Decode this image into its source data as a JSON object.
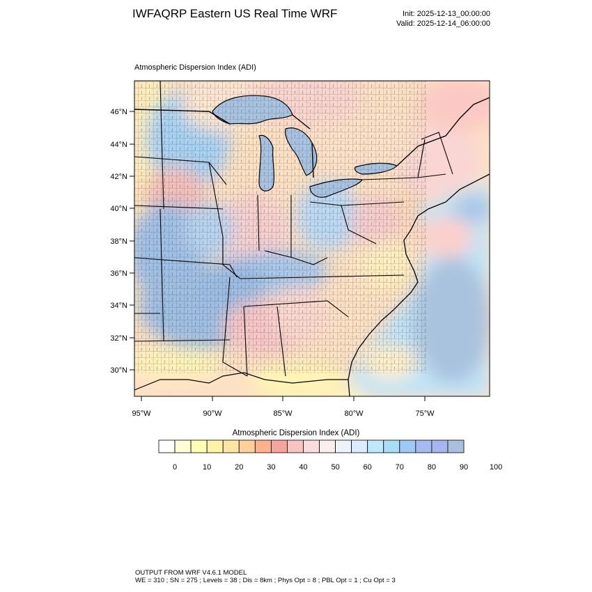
{
  "header": {
    "title": "IWFAQRP Eastern US Real Time WRF",
    "init": "Init: 2025-12-13_00:00:00",
    "valid": "Valid: 2025-12-14_06:00:00"
  },
  "map": {
    "subtitle": "Atmospheric Dispersion Index   (ADI)",
    "lat_labels": [
      "46°N",
      "44°N",
      "42°N",
      "40°N",
      "38°N",
      "36°N",
      "34°N",
      "32°N",
      "30°N"
    ],
    "lon_labels": [
      "95°W",
      "90°W",
      "85°W",
      "80°W",
      "75°W"
    ],
    "ocean_color": "#ffffff"
  },
  "colorbar": {
    "title": "Atmospheric Dispersion Index  (ADI)",
    "colors": [
      "#ffffff",
      "#ffffd6",
      "#ffffb3",
      "#fff3a6",
      "#ffe5a1",
      "#ffd199",
      "#fcb28c",
      "#f5a69a",
      "#f7c4c2",
      "#fbdcdc",
      "#fdeeee",
      "#eef2fb",
      "#dcecfb",
      "#bfe8fb",
      "#a8dcf7",
      "#9fc9f3",
      "#a3bbf0",
      "#a5b7ec",
      "#a9c0dd"
    ],
    "tick_labels": [
      "0",
      "10",
      "20",
      "30",
      "40",
      "50",
      "60",
      "70",
      "80",
      "90",
      "100"
    ]
  },
  "footer": {
    "line1": "OUTPUT FROM WRF V4.6.1 MODEL",
    "line2": "WE = 310 ; SN = 275 ; Levels = 38 ; Dis = 8km ; Phys Opt = 8 ; PBL Opt = 1 ; Cu Opt = 3"
  }
}
